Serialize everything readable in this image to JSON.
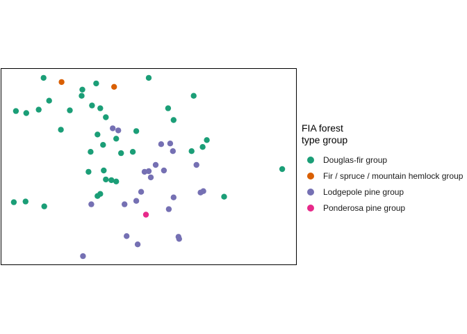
{
  "chart_data": {
    "type": "scatter",
    "title": "",
    "xlabel": "",
    "ylabel": "",
    "xlim": [
      0,
      426
    ],
    "ylim": [
      0,
      283
    ],
    "grid": false,
    "legend": {
      "title": "FIA forest\ntype group",
      "placement": "right"
    },
    "series": [
      {
        "name": "Douglas-fir group",
        "color": "#1b9e77",
        "points": [
          [
            61,
            270
          ],
          [
            117,
            253
          ],
          [
            137,
            262
          ],
          [
            213,
            270
          ],
          [
            116,
            244
          ],
          [
            69,
            237
          ],
          [
            21,
            222
          ],
          [
            36,
            219
          ],
          [
            54,
            224
          ],
          [
            99,
            223
          ],
          [
            131,
            230
          ],
          [
            143,
            226
          ],
          [
            151,
            213
          ],
          [
            241,
            226
          ],
          [
            249,
            209
          ],
          [
            278,
            244
          ],
          [
            86,
            195
          ],
          [
            139,
            188
          ],
          [
            195,
            193
          ],
          [
            166,
            182
          ],
          [
            147,
            173
          ],
          [
            297,
            180
          ],
          [
            291,
            170
          ],
          [
            275,
            164
          ],
          [
            129,
            163
          ],
          [
            173,
            161
          ],
          [
            190,
            163
          ],
          [
            148,
            136
          ],
          [
            126,
            134
          ],
          [
            151,
            123
          ],
          [
            159,
            122
          ],
          [
            166,
            120
          ],
          [
            143,
            102
          ],
          [
            139,
            99
          ],
          [
            18,
            90
          ],
          [
            35,
            91
          ],
          [
            62,
            84
          ],
          [
            322,
            98
          ],
          [
            406,
            138
          ]
        ]
      },
      {
        "name": "Fir / spruce / mountain hemlock group",
        "color": "#d95f02",
        "points": [
          [
            87,
            264
          ],
          [
            163,
            257
          ]
        ]
      },
      {
        "name": "Lodgepole pine group",
        "color": "#7570b3",
        "points": [
          [
            161,
            197
          ],
          [
            169,
            194
          ],
          [
            231,
            174
          ],
          [
            244,
            175
          ],
          [
            248,
            164
          ],
          [
            223,
            144
          ],
          [
            235,
            136
          ],
          [
            213,
            135
          ],
          [
            207,
            134
          ],
          [
            216,
            126
          ],
          [
            282,
            144
          ],
          [
            292,
            106
          ],
          [
            288,
            104
          ],
          [
            202,
            105
          ],
          [
            249,
            97
          ],
          [
            195,
            92
          ],
          [
            178,
            87
          ],
          [
            130,
            87
          ],
          [
            242,
            80
          ],
          [
            181,
            41
          ],
          [
            256,
            40
          ],
          [
            257,
            37
          ],
          [
            197,
            29
          ],
          [
            118,
            12
          ]
        ]
      },
      {
        "name": "Ponderosa pine group",
        "color": "#e7298a",
        "points": [
          [
            209,
            72
          ]
        ]
      }
    ]
  }
}
